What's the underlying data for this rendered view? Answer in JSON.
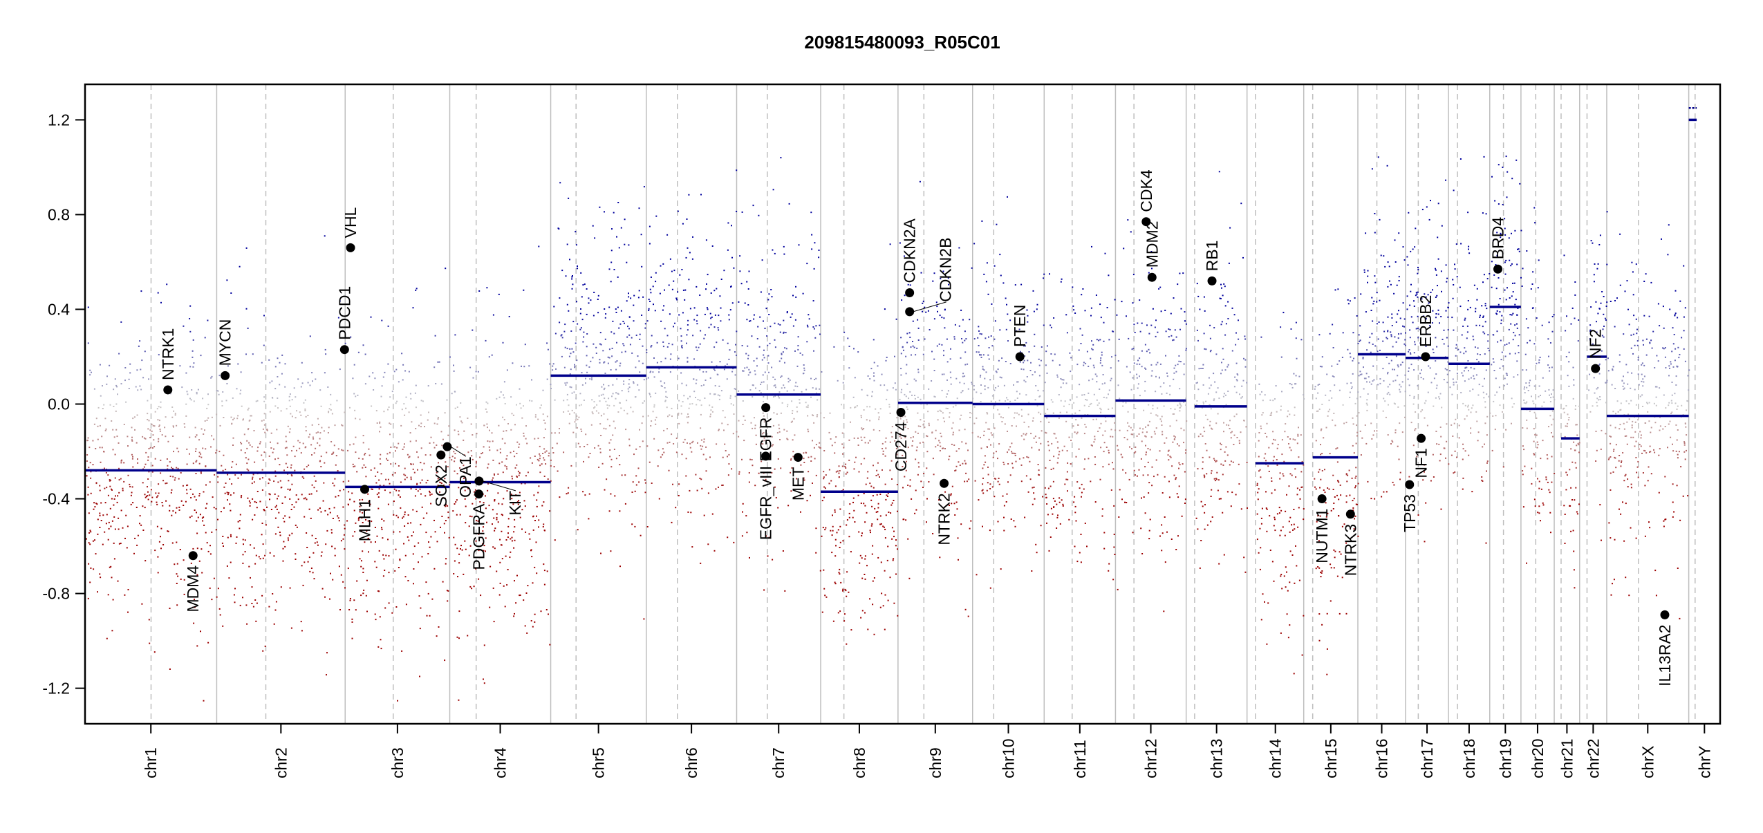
{
  "chart_data": {
    "type": "scatter",
    "title": "209815480093_R05C01",
    "xlabel": "",
    "ylabel": "",
    "ylim": [
      -1.35,
      1.35
    ],
    "yticks": [
      -1.2,
      -0.8,
      -0.4,
      0.0,
      0.4,
      0.8,
      1.2
    ],
    "ytick_labels": [
      "-1.2",
      "-0.8",
      "-0.4",
      "0.0",
      "0.4",
      "0.8",
      "1.2"
    ],
    "grid": false,
    "colors": {
      "gain": "#00009c",
      "neutral": "#c8c8c8",
      "loss": "#9c0000",
      "segment": "#00008b",
      "boundary": "#bebebe",
      "centromere": "#bebebe",
      "gene": "#000000"
    },
    "chromosomes": [
      {
        "name": "chr1",
        "length_mb": 249.25,
        "centromere_mb": 125,
        "segment": -0.28
      },
      {
        "name": "chr2",
        "length_mb": 243.2,
        "centromere_mb": 93,
        "segment": -0.29
      },
      {
        "name": "chr3",
        "length_mb": 198.0,
        "centromere_mb": 91,
        "segment": -0.35
      },
      {
        "name": "chr4",
        "length_mb": 191.15,
        "centromere_mb": 50,
        "segment": -0.33
      },
      {
        "name": "chr5",
        "length_mb": 180.9,
        "centromere_mb": 48,
        "segment": 0.12
      },
      {
        "name": "chr6",
        "length_mb": 171.1,
        "centromere_mb": 59,
        "segment": 0.155
      },
      {
        "name": "chr7",
        "length_mb": 159.1,
        "centromere_mb": 58,
        "segment": 0.04
      },
      {
        "name": "chr8",
        "length_mb": 146.4,
        "centromere_mb": 44,
        "segment": -0.37
      },
      {
        "name": "chr9",
        "length_mb": 141.2,
        "centromere_mb": 49,
        "segment": 0.005
      },
      {
        "name": "chr10",
        "length_mb": 135.5,
        "centromere_mb": 40,
        "segment": 0.0
      },
      {
        "name": "chr11",
        "length_mb": 135.0,
        "centromere_mb": 53,
        "segment": -0.05
      },
      {
        "name": "chr12",
        "length_mb": 133.85,
        "centromere_mb": 35,
        "segment": 0.015
      },
      {
        "name": "chr13",
        "length_mb": 115.2,
        "centromere_mb": 16,
        "segment": -0.01
      },
      {
        "name": "chr14",
        "length_mb": 107.35,
        "centromere_mb": 16,
        "segment": -0.25
      },
      {
        "name": "chr15",
        "length_mb": 102.5,
        "centromere_mb": 17,
        "segment": -0.225
      },
      {
        "name": "chr16",
        "length_mb": 90.35,
        "centromere_mb": 36,
        "segment": 0.21
      },
      {
        "name": "chr17",
        "length_mb": 81.2,
        "centromere_mb": 24,
        "segment": 0.195
      },
      {
        "name": "chr18",
        "length_mb": 78.1,
        "centromere_mb": 17,
        "segment": 0.17
      },
      {
        "name": "chr19",
        "length_mb": 59.1,
        "centromere_mb": 26,
        "segment": 0.41
      },
      {
        "name": "chr20",
        "length_mb": 63.0,
        "centromere_mb": 28,
        "segment": -0.02
      },
      {
        "name": "chr21",
        "length_mb": 48.1,
        "centromere_mb": 13,
        "segment": -0.145
      },
      {
        "name": "chr22",
        "length_mb": 51.3,
        "centromere_mb": 14,
        "segment": 0.2
      },
      {
        "name": "chrX",
        "length_mb": 155.3,
        "centromere_mb": 60,
        "segment": -0.05
      },
      {
        "name": "chrY",
        "length_mb": 59.4,
        "centromere_mb": 12,
        "segment": 1.2,
        "segment2": 1.25
      }
    ],
    "genes": [
      {
        "name": "NTRK1",
        "chr": "chr1",
        "pos_mb": 156.8,
        "value": 0.06
      },
      {
        "name": "MDM4",
        "chr": "chr1",
        "pos_mb": 204.5,
        "value": -0.64
      },
      {
        "name": "MYCN",
        "chr": "chr2",
        "pos_mb": 16.0,
        "value": 0.12
      },
      {
        "name": "PDCD1",
        "chr": "chr2",
        "pos_mb": 242.0,
        "value": 0.23
      },
      {
        "name": "VHL",
        "chr": "chr3",
        "pos_mb": 10.2,
        "value": 0.66
      },
      {
        "name": "MLH1",
        "chr": "chr3",
        "pos_mb": 37.0,
        "value": -0.36
      },
      {
        "name": "SOX2",
        "chr": "chr3",
        "pos_mb": 181.4,
        "value": -0.215
      },
      {
        "name": "OPA1",
        "chr": "chr3",
        "pos_mb": 193.3,
        "value": -0.18
      },
      {
        "name": "PDGFRA",
        "chr": "chr4",
        "pos_mb": 55.1,
        "value": -0.38
      },
      {
        "name": "KIT",
        "chr": "chr4",
        "pos_mb": 55.5,
        "value": -0.325
      },
      {
        "name": "EGFR_vIII",
        "chr": "chr7",
        "pos_mb": 55.1,
        "value": -0.22
      },
      {
        "name": "EGFR",
        "chr": "chr7",
        "pos_mb": 55.2,
        "value": -0.015
      },
      {
        "name": "MET",
        "chr": "chr7",
        "pos_mb": 116.3,
        "value": -0.225
      },
      {
        "name": "CD274",
        "chr": "chr9",
        "pos_mb": 5.45,
        "value": -0.035
      },
      {
        "name": "CDKN2A",
        "chr": "chr9",
        "pos_mb": 21.97,
        "value": 0.47
      },
      {
        "name": "CDKN2B",
        "chr": "chr9",
        "pos_mb": 22.0,
        "value": 0.39
      },
      {
        "name": "NTRK2",
        "chr": "chr9",
        "pos_mb": 87.3,
        "value": -0.335
      },
      {
        "name": "PTEN",
        "chr": "chr10",
        "pos_mb": 89.6,
        "value": 0.2
      },
      {
        "name": "CDK4",
        "chr": "chr12",
        "pos_mb": 58.1,
        "value": 0.77
      },
      {
        "name": "MDM2",
        "chr": "chr12",
        "pos_mb": 69.2,
        "value": 0.535
      },
      {
        "name": "RB1",
        "chr": "chr13",
        "pos_mb": 48.9,
        "value": 0.52
      },
      {
        "name": "NUTM1",
        "chr": "chr15",
        "pos_mb": 34.6,
        "value": -0.4
      },
      {
        "name": "NTRK3",
        "chr": "chr15",
        "pos_mb": 88.5,
        "value": -0.465
      },
      {
        "name": "TP53",
        "chr": "chr17",
        "pos_mb": 7.5,
        "value": -0.34
      },
      {
        "name": "NF1",
        "chr": "chr17",
        "pos_mb": 29.5,
        "value": -0.145
      },
      {
        "name": "ERBB2",
        "chr": "chr17",
        "pos_mb": 37.8,
        "value": 0.2
      },
      {
        "name": "BRD4",
        "chr": "chr19",
        "pos_mb": 15.4,
        "value": 0.57
      },
      {
        "name": "NF2",
        "chr": "chr22",
        "pos_mb": 30.0,
        "value": 0.15
      },
      {
        "name": "IL13RA2",
        "chr": "chrX",
        "pos_mb": 110.0,
        "value": -0.89
      }
    ]
  }
}
